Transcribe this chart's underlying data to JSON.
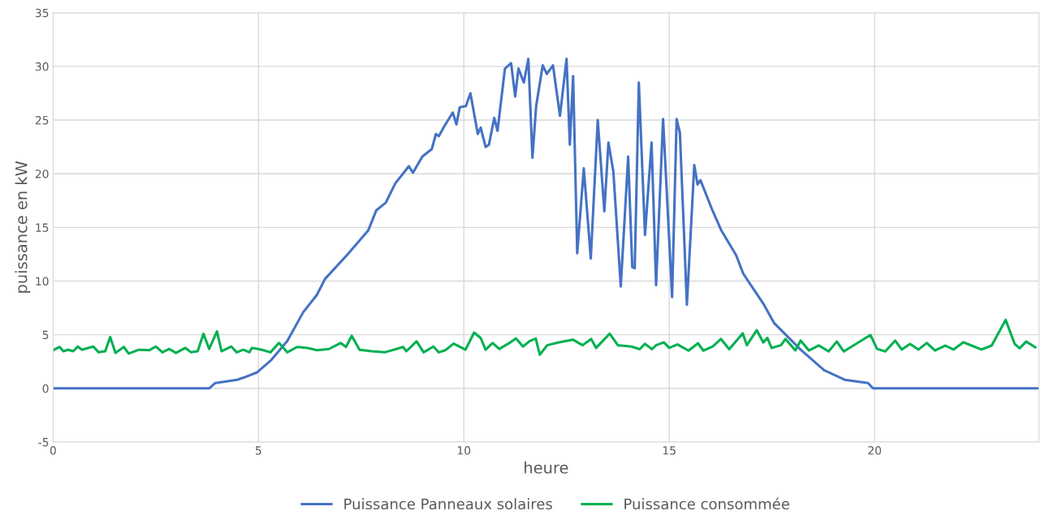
{
  "chart_data": {
    "type": "line",
    "xlabel": "heure",
    "ylabel": "puissance en kW",
    "xlim": [
      0,
      24
    ],
    "ylim": [
      -5,
      35
    ],
    "xticks": [
      0,
      5,
      10,
      15,
      20
    ],
    "yticks": [
      -5,
      0,
      5,
      10,
      15,
      20,
      25,
      30,
      35
    ],
    "grid": true,
    "legend": "bottom",
    "marker": "none",
    "line_style": "solid",
    "series": [
      {
        "name": "Puissance Panneaux solaires",
        "color": "#4472c4",
        "x": [
          0,
          3.8,
          3.95,
          4.48,
          4.64,
          4.97,
          5.3,
          5.7,
          6.09,
          6.42,
          6.62,
          7.15,
          7.67,
          7.87,
          8.1,
          8.33,
          8.66,
          8.76,
          8.99,
          9.22,
          9.32,
          9.39,
          9.52,
          9.73,
          9.82,
          9.9,
          10.05,
          10.16,
          10.34,
          10.41,
          10.53,
          10.61,
          10.74,
          10.82,
          11.0,
          11.15,
          11.25,
          11.33,
          11.46,
          11.57,
          11.67,
          11.76,
          11.92,
          12.02,
          12.17,
          12.34,
          12.5,
          12.58,
          12.66,
          12.76,
          12.92,
          13.09,
          13.26,
          13.42,
          13.52,
          13.64,
          13.82,
          14.0,
          14.1,
          14.16,
          14.26,
          14.41,
          14.57,
          14.68,
          14.85,
          15.07,
          15.18,
          15.26,
          15.43,
          15.61,
          15.69,
          15.76,
          16.04,
          16.27,
          16.63,
          16.8,
          17.29,
          17.55,
          18.2,
          18.77,
          19.27,
          19.84,
          19.96,
          24
        ],
        "values": [
          0,
          0,
          0.5,
          0.8,
          1.0,
          1.5,
          2.6,
          4.4,
          7.1,
          8.7,
          10.2,
          12.4,
          14.7,
          16.6,
          17.3,
          19.1,
          20.7,
          20.1,
          21.6,
          22.3,
          23.7,
          23.5,
          24.4,
          25.7,
          24.6,
          26.2,
          26.3,
          27.5,
          23.7,
          24.3,
          22.5,
          22.7,
          25.2,
          24.0,
          29.8,
          30.3,
          27.2,
          29.8,
          28.5,
          30.7,
          21.5,
          26.3,
          30.1,
          29.3,
          30.1,
          25.4,
          30.7,
          22.7,
          29.1,
          12.6,
          20.5,
          12.1,
          25.0,
          16.5,
          22.9,
          20.2,
          9.5,
          21.6,
          11.3,
          11.2,
          28.5,
          14.3,
          22.9,
          9.6,
          25.1,
          8.5,
          25.1,
          23.8,
          7.8,
          20.8,
          19.0,
          19.4,
          16.7,
          14.7,
          12.4,
          10.7,
          7.9,
          6.1,
          3.6,
          1.7,
          0.8,
          0.5,
          0,
          0
        ]
      },
      {
        "name": "Puissance consommée",
        "color": "#00b050",
        "x": [
          0,
          0.16,
          0.25,
          0.37,
          0.49,
          0.6,
          0.7,
          0.98,
          1.11,
          1.27,
          1.39,
          1.52,
          1.72,
          1.84,
          2.09,
          2.34,
          2.5,
          2.66,
          2.83,
          2.99,
          3.22,
          3.36,
          3.52,
          3.66,
          3.8,
          3.99,
          4.1,
          4.34,
          4.47,
          4.63,
          4.78,
          4.84,
          5.0,
          5.12,
          5.29,
          5.5,
          5.7,
          5.94,
          6.19,
          6.43,
          6.72,
          7.0,
          7.13,
          7.27,
          7.46,
          7.75,
          8.07,
          8.36,
          8.52,
          8.6,
          8.85,
          9.02,
          9.26,
          9.39,
          9.55,
          9.75,
          10.04,
          10.25,
          10.41,
          10.53,
          10.7,
          10.86,
          11.11,
          11.27,
          11.44,
          11.6,
          11.75,
          11.85,
          12.03,
          12.3,
          12.66,
          12.89,
          13.1,
          13.22,
          13.55,
          13.75,
          14.08,
          14.28,
          14.41,
          14.58,
          14.68,
          14.87,
          15.0,
          15.2,
          15.47,
          15.7,
          15.83,
          16.06,
          16.26,
          16.46,
          16.79,
          16.89,
          17.13,
          17.29,
          17.39,
          17.49,
          17.72,
          17.83,
          18.07,
          18.2,
          18.4,
          18.64,
          18.88,
          19.08,
          19.25,
          19.61,
          19.9,
          20.06,
          20.26,
          20.5,
          20.66,
          20.86,
          21.07,
          21.27,
          21.47,
          21.72,
          21.92,
          22.16,
          22.36,
          22.6,
          22.85,
          23.19,
          23.41,
          23.53,
          23.69,
          23.91
        ],
        "values": [
          3.55,
          3.86,
          3.46,
          3.6,
          3.46,
          3.9,
          3.6,
          3.9,
          3.36,
          3.46,
          4.78,
          3.3,
          3.86,
          3.24,
          3.6,
          3.55,
          3.9,
          3.36,
          3.67,
          3.3,
          3.77,
          3.36,
          3.46,
          5.09,
          3.67,
          5.3,
          3.46,
          3.9,
          3.36,
          3.6,
          3.36,
          3.77,
          3.67,
          3.55,
          3.36,
          4.23,
          3.36,
          3.86,
          3.77,
          3.55,
          3.67,
          4.23,
          3.86,
          4.9,
          3.6,
          3.46,
          3.36,
          3.67,
          3.86,
          3.46,
          4.38,
          3.36,
          3.9,
          3.36,
          3.55,
          4.17,
          3.6,
          5.2,
          4.69,
          3.6,
          4.23,
          3.67,
          4.23,
          4.65,
          3.9,
          4.4,
          4.65,
          3.14,
          4.02,
          4.28,
          4.53,
          4.02,
          4.6,
          3.77,
          5.1,
          4.02,
          3.9,
          3.65,
          4.15,
          3.65,
          4.02,
          4.28,
          3.77,
          4.1,
          3.52,
          4.2,
          3.52,
          3.9,
          4.6,
          3.65,
          5.13,
          4.02,
          5.42,
          4.28,
          4.7,
          3.77,
          4.02,
          4.6,
          3.53,
          4.45,
          3.53,
          4.0,
          3.44,
          4.36,
          3.44,
          4.29,
          4.97,
          3.68,
          3.44,
          4.45,
          3.62,
          4.14,
          3.62,
          4.23,
          3.53,
          3.99,
          3.62,
          4.29,
          3.99,
          3.62,
          3.99,
          6.38,
          4.14,
          3.74,
          4.36,
          3.83
        ]
      }
    ]
  }
}
